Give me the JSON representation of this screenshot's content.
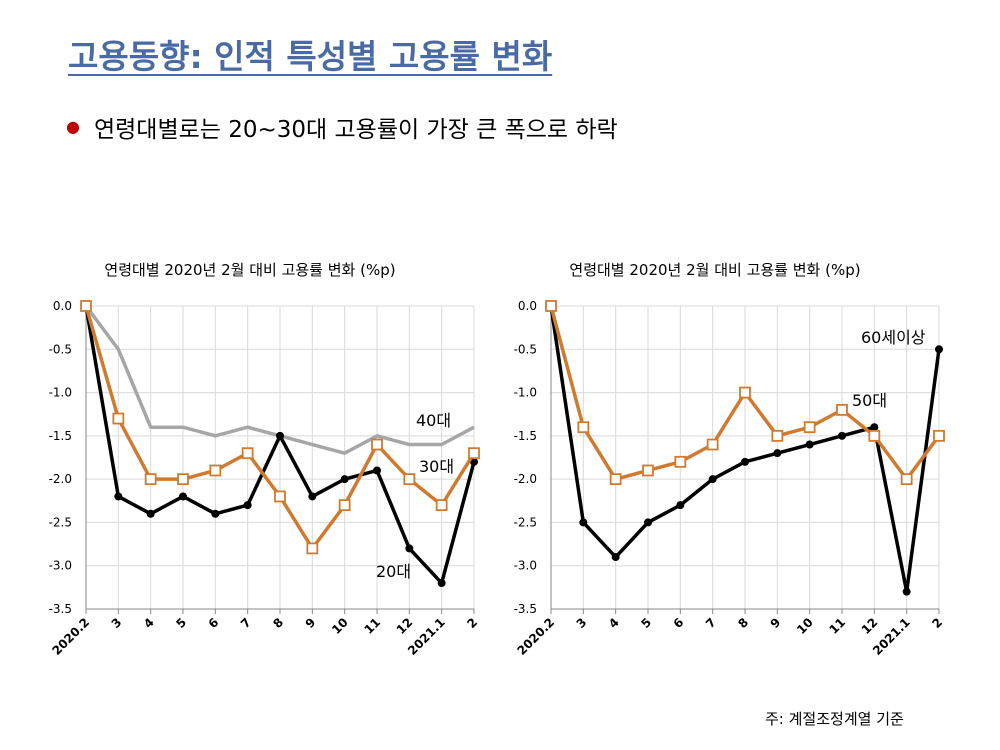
{
  "slide": {
    "title": "고용동향: 인적 특성별 고용률 변화",
    "bullet": "연령대별로는 20~30대 고용률이 가장 큰 폭으로 하락",
    "footnote": "주: 계절조정계열 기준"
  },
  "colors": {
    "title": "#4a6aa6",
    "bullet": "#c00000",
    "black_series": "#000000",
    "orange_series": "#d07a30",
    "gray_series": "#a6a6a6",
    "grid": "#d9d9d9"
  },
  "chart_data": [
    {
      "type": "line",
      "title": "연령대별 2020년 2월 대비 고용률 변화 (%p)",
      "categories": [
        "2020.2",
        "3",
        "4",
        "5",
        "6",
        "7",
        "8",
        "9",
        "10",
        "11",
        "12",
        "2021.1",
        "2"
      ],
      "ylim": [
        -3.5,
        0.0
      ],
      "yticks": [
        "0.0",
        "-0.5",
        "-1.0",
        "-1.5",
        "-2.0",
        "-2.5",
        "-3.0",
        "-3.5"
      ],
      "grid": true,
      "series": [
        {
          "name": "40대",
          "color": "#a6a6a6",
          "marker": "none",
          "values": [
            0.0,
            -0.5,
            -1.4,
            -1.4,
            -1.5,
            -1.4,
            -1.5,
            -1.6,
            -1.7,
            -1.5,
            -1.6,
            -1.6,
            -1.4
          ]
        },
        {
          "name": "20대",
          "color": "#000000",
          "marker": "dot",
          "values": [
            0.0,
            -2.2,
            -2.4,
            -2.2,
            -2.4,
            -2.3,
            -1.5,
            -2.2,
            -2.0,
            -1.9,
            -2.8,
            -3.2,
            -1.8
          ]
        },
        {
          "name": "30대",
          "color": "#d07a30",
          "marker": "square",
          "values": [
            0.0,
            -1.3,
            -2.0,
            -2.0,
            -1.9,
            -1.7,
            -2.2,
            -2.8,
            -2.3,
            -1.6,
            -2.0,
            -2.3,
            -1.7
          ]
        }
      ],
      "annotations": [
        "40대",
        "30대",
        "20대"
      ]
    },
    {
      "type": "line",
      "title": "연령대별 2020년 2월 대비 고용률 변화 (%p)",
      "categories": [
        "2020.2",
        "3",
        "4",
        "5",
        "6",
        "7",
        "8",
        "9",
        "10",
        "11",
        "12",
        "2021.1",
        "2"
      ],
      "ylim": [
        -3.5,
        0.0
      ],
      "yticks": [
        "0.0",
        "-0.5",
        "-1.0",
        "-1.5",
        "-2.0",
        "-2.5",
        "-3.0",
        "-3.5"
      ],
      "grid": true,
      "series": [
        {
          "name": "60세이상",
          "color": "#000000",
          "marker": "dot",
          "values": [
            0.0,
            -2.5,
            -2.9,
            -2.5,
            -2.3,
            -2.0,
            -1.8,
            -1.7,
            -1.6,
            -1.5,
            -1.4,
            -3.3,
            -0.5
          ]
        },
        {
          "name": "50대",
          "color": "#d07a30",
          "marker": "square",
          "values": [
            0.0,
            -1.4,
            -2.0,
            -1.9,
            -1.8,
            -1.6,
            -1.0,
            -1.5,
            -1.4,
            -1.2,
            -1.5,
            -2.0,
            -1.5
          ]
        }
      ],
      "annotations": [
        "60세이상",
        "50대"
      ]
    }
  ]
}
